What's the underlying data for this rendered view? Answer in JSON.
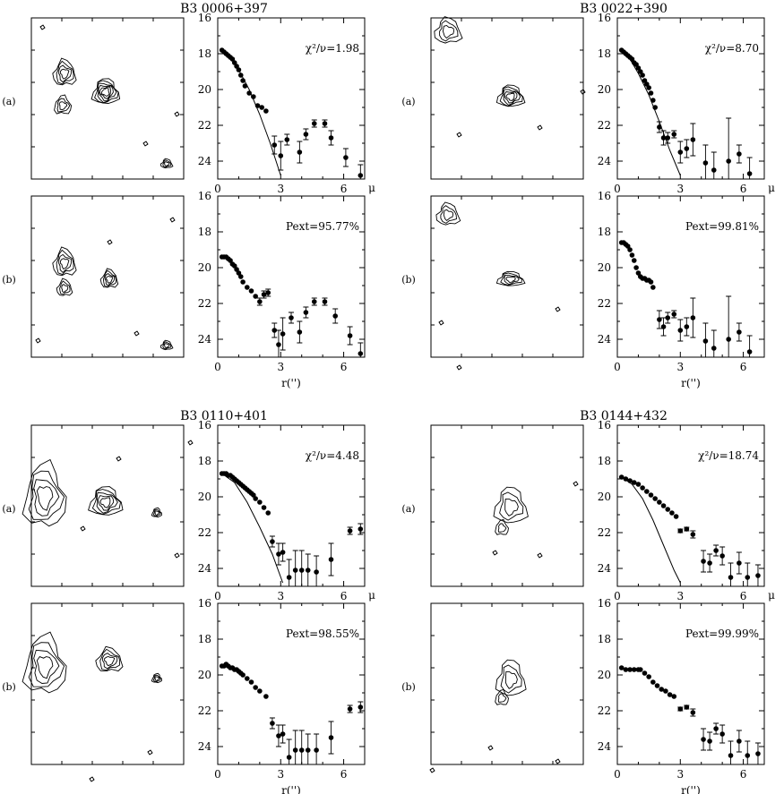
{
  "figure": {
    "objects": [
      {
        "name": "B3  0006+397",
        "panel_a_label": "(a)",
        "panel_b_label": "(b)",
        "stat_a": "χ²/ν=1.98",
        "stat_b": "Pext=95.77%",
        "model_curve": [
          [
            0.2,
            17.8
          ],
          [
            0.6,
            18.2
          ],
          [
            1.0,
            18.9
          ],
          [
            1.5,
            20.0
          ],
          [
            2.0,
            21.4
          ],
          [
            2.5,
            23.0
          ],
          [
            3.0,
            24.8
          ]
        ]
      },
      {
        "name": "B3  0022+390",
        "panel_a_label": "(a)",
        "panel_b_label": "(b)",
        "stat_a": "χ²/ν=8.70",
        "stat_b": "Pext=99.81%",
        "model_curve": [
          [
            0.2,
            17.8
          ],
          [
            0.6,
            18.3
          ],
          [
            1.0,
            19.1
          ],
          [
            1.5,
            20.3
          ],
          [
            2.0,
            21.8
          ],
          [
            2.5,
            23.4
          ],
          [
            3.0,
            24.8
          ]
        ]
      },
      {
        "name": "B3  0110+401",
        "panel_a_label": "(a)",
        "panel_b_label": "(b)",
        "stat_a": "χ²/ν=4.48",
        "stat_b": "Pext=98.55%",
        "model_curve": [
          [
            0.2,
            18.7
          ],
          [
            0.8,
            19.2
          ],
          [
            1.4,
            20.3
          ],
          [
            2.0,
            21.7
          ],
          [
            2.6,
            23.2
          ],
          [
            3.1,
            24.8
          ]
        ]
      },
      {
        "name": "B3  0144+432",
        "panel_a_label": "(a)",
        "panel_b_label": "(b)",
        "stat_a": "χ²/ν=18.74",
        "stat_b": "Pext=99.99%",
        "model_curve": [
          [
            0.2,
            18.9
          ],
          [
            0.7,
            19.3
          ],
          [
            1.2,
            20.1
          ],
          [
            1.7,
            21.3
          ],
          [
            2.2,
            22.7
          ],
          [
            2.7,
            24.1
          ],
          [
            3.0,
            24.8
          ]
        ]
      }
    ],
    "xlabel": "r('')",
    "ylabel": "μ"
  },
  "chart_data": [
    {
      "type": "scatter",
      "object": "B3  0006+397",
      "panel": "(a)",
      "annotation": "χ²/ν=1.98",
      "xlim": [
        0,
        7
      ],
      "ylim": [
        25,
        16
      ],
      "xticks": [
        0,
        3,
        6
      ],
      "yticks": [
        16,
        18,
        20,
        22,
        24
      ],
      "x": [
        0.2,
        0.3,
        0.4,
        0.5,
        0.6,
        0.7,
        0.8,
        0.9,
        1.0,
        1.1,
        1.2,
        1.3,
        1.5,
        1.7,
        1.9,
        2.1,
        2.3,
        2.7,
        3.0,
        3.3,
        3.9,
        4.2,
        4.6,
        5.1,
        5.4,
        6.1,
        6.8
      ],
      "y": [
        17.8,
        17.9,
        18.0,
        18.1,
        18.2,
        18.3,
        18.5,
        18.7,
        18.9,
        19.2,
        19.5,
        19.8,
        20.2,
        20.4,
        20.9,
        21.0,
        21.2,
        23.1,
        23.7,
        22.8,
        23.5,
        22.5,
        21.9,
        21.9,
        22.7,
        23.8,
        24.8
      ],
      "err": [
        0,
        0,
        0,
        0,
        0,
        0,
        0,
        0,
        0,
        0,
        0,
        0,
        0,
        0,
        0,
        0,
        0,
        0.5,
        0.8,
        0.3,
        0.6,
        0.3,
        0.2,
        0.2,
        0.4,
        0.5,
        0.6
      ]
    },
    {
      "type": "scatter",
      "object": "B3  0006+397",
      "panel": "(b)",
      "annotation": "Pext=95.77%",
      "xlabel": "r('')",
      "xlim": [
        0,
        7
      ],
      "ylim": [
        25,
        16
      ],
      "xticks": [
        0,
        3,
        6
      ],
      "yticks": [
        16,
        18,
        20,
        22,
        24
      ],
      "x": [
        0.2,
        0.3,
        0.4,
        0.5,
        0.6,
        0.7,
        0.8,
        0.9,
        1.0,
        1.1,
        1.2,
        1.4,
        1.6,
        1.8,
        2.0,
        2.2,
        2.4,
        2.7,
        2.9,
        3.1,
        3.5,
        3.9,
        4.2,
        4.6,
        5.1,
        5.6,
        6.3,
        6.8
      ],
      "y": [
        19.4,
        19.4,
        19.4,
        19.5,
        19.6,
        19.8,
        19.9,
        20.1,
        20.3,
        20.5,
        20.8,
        21.1,
        21.3,
        21.6,
        21.9,
        21.5,
        21.4,
        23.5,
        24.3,
        23.7,
        22.8,
        23.6,
        22.5,
        21.9,
        21.9,
        22.7,
        23.8,
        24.8
      ],
      "err": [
        0,
        0,
        0,
        0,
        0,
        0,
        0,
        0,
        0,
        0,
        0,
        0,
        0,
        0,
        0.2,
        0.2,
        0.2,
        0.4,
        0.8,
        0.9,
        0.3,
        0.6,
        0.3,
        0.2,
        0.2,
        0.4,
        0.5,
        0.6
      ]
    },
    {
      "type": "scatter",
      "object": "B3  0022+390",
      "panel": "(a)",
      "annotation": "χ²/ν=8.70",
      "xlim": [
        0,
        7
      ],
      "ylim": [
        25,
        16
      ],
      "xticks": [
        0,
        3,
        6
      ],
      "yticks": [
        16,
        18,
        20,
        22,
        24
      ],
      "x": [
        0.2,
        0.3,
        0.4,
        0.5,
        0.6,
        0.7,
        0.8,
        0.9,
        1.0,
        1.1,
        1.2,
        1.3,
        1.4,
        1.5,
        1.6,
        1.7,
        1.8,
        2.0,
        2.2,
        2.4,
        2.7,
        3.0,
        3.3,
        3.6,
        4.2,
        4.6,
        5.3,
        5.8,
        6.3
      ],
      "y": [
        17.8,
        17.9,
        18.0,
        18.1,
        18.2,
        18.3,
        18.5,
        18.6,
        18.8,
        19.0,
        19.2,
        19.5,
        19.7,
        19.9,
        20.2,
        20.6,
        21.0,
        22.1,
        22.7,
        22.7,
        22.5,
        23.5,
        23.3,
        22.8,
        24.1,
        24.5,
        24.0,
        23.6,
        24.7
      ],
      "err": [
        0,
        0,
        0,
        0,
        0,
        0,
        0,
        0,
        0,
        0,
        0,
        0,
        0,
        0,
        0,
        0,
        0,
        0.3,
        0.4,
        0.3,
        0.2,
        0.6,
        0.5,
        0.9,
        1.0,
        1.0,
        2.4,
        0.5,
        0.9
      ]
    },
    {
      "type": "scatter",
      "object": "B3  0022+390",
      "panel": "(b)",
      "annotation": "Pext=99.81%",
      "xlabel": "r('')",
      "xlim": [
        0,
        7
      ],
      "ylim": [
        25,
        16
      ],
      "xticks": [
        0,
        3,
        6
      ],
      "yticks": [
        16,
        18,
        20,
        22,
        24
      ],
      "x": [
        0.2,
        0.3,
        0.4,
        0.5,
        0.6,
        0.7,
        0.8,
        0.9,
        1.0,
        1.1,
        1.2,
        1.3,
        1.4,
        1.5,
        1.6,
        1.7,
        2.0,
        2.2,
        2.4,
        2.7,
        3.0,
        3.3,
        3.6,
        4.2,
        4.6,
        5.3,
        5.8,
        6.3
      ],
      "y": [
        18.6,
        18.6,
        18.7,
        18.8,
        19.0,
        19.3,
        19.6,
        20.0,
        20.3,
        20.5,
        20.6,
        20.6,
        20.7,
        20.7,
        20.8,
        21.1,
        22.9,
        23.3,
        22.8,
        22.6,
        23.5,
        23.3,
        22.8,
        24.1,
        24.5,
        24.0,
        23.6,
        24.7
      ],
      "err": [
        0,
        0,
        0,
        0,
        0,
        0,
        0,
        0,
        0,
        0,
        0,
        0,
        0,
        0,
        0,
        0,
        0.5,
        0.5,
        0.3,
        0.2,
        0.6,
        0.5,
        1.1,
        1.0,
        1.0,
        2.4,
        0.5,
        0.9
      ]
    },
    {
      "type": "scatter",
      "object": "B3  0110+401",
      "panel": "(a)",
      "annotation": "χ²/ν=4.48",
      "xlim": [
        0,
        7
      ],
      "ylim": [
        25,
        16
      ],
      "xticks": [
        0,
        3,
        6
      ],
      "yticks": [
        16,
        18,
        20,
        22,
        24
      ],
      "x": [
        0.2,
        0.3,
        0.4,
        0.5,
        0.6,
        0.7,
        0.8,
        0.9,
        1.0,
        1.1,
        1.2,
        1.3,
        1.4,
        1.5,
        1.6,
        1.7,
        1.8,
        2.0,
        2.2,
        2.4,
        2.6,
        2.9,
        3.1,
        3.4,
        3.7,
        4.0,
        4.3,
        4.7,
        5.4,
        6.3,
        6.8
      ],
      "y": [
        18.7,
        18.7,
        18.7,
        18.8,
        18.8,
        18.9,
        19.0,
        19.1,
        19.2,
        19.3,
        19.4,
        19.5,
        19.6,
        19.7,
        19.8,
        19.9,
        20.1,
        20.3,
        20.6,
        20.9,
        22.5,
        23.2,
        23.1,
        24.5,
        24.1,
        24.1,
        24.1,
        24.2,
        23.5,
        21.9,
        21.8
      ],
      "err": [
        0,
        0,
        0,
        0,
        0,
        0,
        0,
        0,
        0,
        0,
        0,
        0,
        0,
        0,
        0,
        0,
        0,
        0,
        0,
        0,
        0.3,
        0.6,
        0.5,
        1.0,
        1.1,
        1.1,
        0.9,
        0.9,
        0.9,
        0.2,
        0.3
      ]
    },
    {
      "type": "scatter",
      "object": "B3  0110+401",
      "panel": "(b)",
      "annotation": "Pext=98.55%",
      "xlabel": "r('')",
      "xlim": [
        0,
        7
      ],
      "ylim": [
        25,
        16
      ],
      "xticks": [
        0,
        3,
        6
      ],
      "yticks": [
        16,
        18,
        20,
        22,
        24
      ],
      "x": [
        0.2,
        0.3,
        0.4,
        0.5,
        0.6,
        0.7,
        0.8,
        0.9,
        1.0,
        1.1,
        1.2,
        1.4,
        1.6,
        1.8,
        2.0,
        2.3,
        2.6,
        2.9,
        3.1,
        3.4,
        3.7,
        4.0,
        4.3,
        4.7,
        5.4,
        6.3,
        6.8
      ],
      "y": [
        19.5,
        19.5,
        19.4,
        19.5,
        19.6,
        19.6,
        19.7,
        19.7,
        19.8,
        19.9,
        20.0,
        20.2,
        20.4,
        20.7,
        20.9,
        21.2,
        22.7,
        23.4,
        23.3,
        24.6,
        24.2,
        24.2,
        24.2,
        24.2,
        23.5,
        21.9,
        21.8
      ],
      "err": [
        0,
        0,
        0,
        0,
        0,
        0,
        0,
        0,
        0,
        0,
        0,
        0,
        0,
        0,
        0,
        0,
        0.3,
        0.6,
        0.5,
        1.0,
        1.1,
        1.1,
        0.9,
        0.9,
        0.9,
        0.2,
        0.3
      ]
    },
    {
      "type": "scatter",
      "object": "B3  0144+432",
      "panel": "(a)",
      "annotation": "χ²/ν=18.74",
      "xlim": [
        0,
        7
      ],
      "ylim": [
        25,
        16
      ],
      "xticks": [
        0,
        3,
        6
      ],
      "yticks": [
        16,
        18,
        20,
        22,
        24
      ],
      "x": [
        0.2,
        0.4,
        0.6,
        0.8,
        1.0,
        1.2,
        1.4,
        1.6,
        1.8,
        2.0,
        2.2,
        2.4,
        2.6,
        2.8,
        3.0,
        3.3,
        3.6,
        4.1,
        4.4,
        4.7,
        5.0,
        5.4,
        5.8,
        6.2,
        6.7
      ],
      "y": [
        18.9,
        19.0,
        19.1,
        19.2,
        19.3,
        19.5,
        19.7,
        19.9,
        20.1,
        20.3,
        20.5,
        20.7,
        20.9,
        21.1,
        21.9,
        21.8,
        22.1,
        23.6,
        23.7,
        23.0,
        23.3,
        24.5,
        23.7,
        24.5,
        24.4
      ],
      "err": [
        0,
        0,
        0,
        0,
        0,
        0,
        0,
        0,
        0,
        0,
        0,
        0,
        0,
        0,
        0.1,
        0.1,
        0.2,
        0.6,
        0.5,
        0.3,
        0.5,
        0.8,
        0.6,
        0.8,
        0.6
      ]
    },
    {
      "type": "scatter",
      "object": "B3  0144+432",
      "panel": "(b)",
      "annotation": "Pext=99.99%",
      "xlabel": "r('')",
      "xlim": [
        0,
        7
      ],
      "ylim": [
        25,
        16
      ],
      "xticks": [
        0,
        3,
        6
      ],
      "yticks": [
        16,
        18,
        20,
        22,
        24
      ],
      "x": [
        0.2,
        0.4,
        0.6,
        0.8,
        1.0,
        1.1,
        1.3,
        1.5,
        1.7,
        1.9,
        2.1,
        2.3,
        2.5,
        2.7,
        3.0,
        3.3,
        3.6,
        4.1,
        4.4,
        4.7,
        5.0,
        5.4,
        5.8,
        6.2,
        6.7
      ],
      "y": [
        19.6,
        19.7,
        19.7,
        19.7,
        19.7,
        19.7,
        19.9,
        20.1,
        20.4,
        20.6,
        20.8,
        20.9,
        21.1,
        21.2,
        21.9,
        21.8,
        22.1,
        23.6,
        23.7,
        23.0,
        23.3,
        24.5,
        23.7,
        24.5,
        24.4
      ],
      "err": [
        0,
        0,
        0,
        0,
        0,
        0,
        0,
        0,
        0,
        0,
        0,
        0,
        0,
        0,
        0.1,
        0.1,
        0.2,
        0.6,
        0.5,
        0.3,
        0.5,
        0.8,
        0.6,
        0.8,
        0.6
      ]
    }
  ]
}
